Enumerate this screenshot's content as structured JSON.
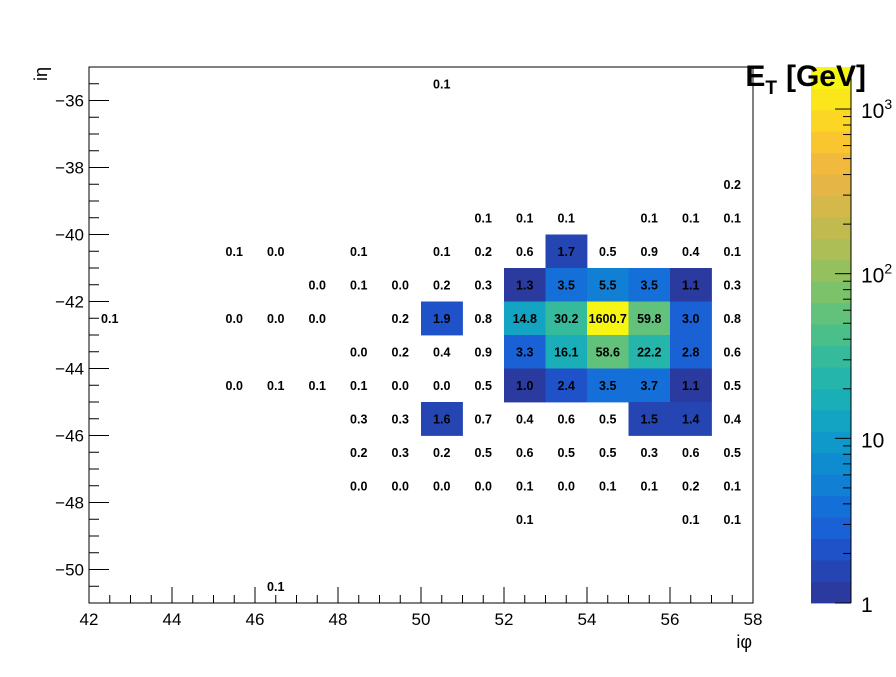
{
  "chart_data": {
    "type": "heatmap",
    "xlabel": "iφ",
    "ylabel": "iη",
    "zlabel": "E",
    "zlabel_sub": "T",
    "zlabel_unit": "[GeV]",
    "xlim": [
      42,
      58
    ],
    "ylim": [
      -51,
      -35
    ],
    "zlim": [
      1,
      1800
    ],
    "z_scale": "log",
    "x_ticks": [
      "42",
      "44",
      "46",
      "48",
      "50",
      "52",
      "54",
      "56",
      "58"
    ],
    "y_ticks": [
      "−36",
      "−38",
      "−40",
      "−42",
      "−44",
      "−46",
      "−48",
      "−50"
    ],
    "z_ticks": [
      {
        "value": 1,
        "base": "1",
        "exp": ""
      },
      {
        "value": 10,
        "base": "10",
        "exp": ""
      },
      {
        "value": 100,
        "base": "10",
        "exp": "2"
      },
      {
        "value": 1000,
        "base": "10",
        "exp": "3"
      }
    ],
    "colormap": [
      "#2a3a9e",
      "#2546b2",
      "#1f52c8",
      "#1a61d6",
      "#1470d8",
      "#117fd4",
      "#0f8ccf",
      "#0e99ca",
      "#12a4c2",
      "#1aaeb8",
      "#25b5ab",
      "#35bb9b",
      "#4bbf8a",
      "#62c17a",
      "#7bc26b",
      "#94c15e",
      "#acbe55",
      "#c1bb4f",
      "#d4b84a",
      "#e5b646",
      "#f2b93f",
      "#f9c630",
      "#fbd624",
      "#fae61a",
      "#f7f612"
    ],
    "cells": [
      {
        "x": 50,
        "y": -36,
        "value": 0.1,
        "label": "0.1"
      },
      {
        "x": 57,
        "y": -39,
        "value": 0.2,
        "label": "0.2"
      },
      {
        "x": 51,
        "y": -40,
        "value": 0.1,
        "label": "0.1"
      },
      {
        "x": 52,
        "y": -40,
        "value": 0.1,
        "label": "0.1"
      },
      {
        "x": 53,
        "y": -40,
        "value": 0.1,
        "label": "0.1"
      },
      {
        "x": 55,
        "y": -40,
        "value": 0.1,
        "label": "0.1"
      },
      {
        "x": 56,
        "y": -40,
        "value": 0.1,
        "label": "0.1"
      },
      {
        "x": 57,
        "y": -40,
        "value": 0.1,
        "label": "0.1"
      },
      {
        "x": 45,
        "y": -41,
        "value": 0.1,
        "label": "0.1"
      },
      {
        "x": 46,
        "y": -41,
        "value": 0.0,
        "label": "0.0"
      },
      {
        "x": 48,
        "y": -41,
        "value": 0.1,
        "label": "0.1"
      },
      {
        "x": 50,
        "y": -41,
        "value": 0.1,
        "label": "0.1"
      },
      {
        "x": 51,
        "y": -41,
        "value": 0.2,
        "label": "0.2"
      },
      {
        "x": 52,
        "y": -41,
        "value": 0.6,
        "label": "0.6"
      },
      {
        "x": 53,
        "y": -41,
        "value": 1.7,
        "label": "1.7"
      },
      {
        "x": 54,
        "y": -41,
        "value": 0.5,
        "label": "0.5"
      },
      {
        "x": 55,
        "y": -41,
        "value": 0.9,
        "label": "0.9"
      },
      {
        "x": 56,
        "y": -41,
        "value": 0.4,
        "label": "0.4"
      },
      {
        "x": 57,
        "y": -41,
        "value": 0.1,
        "label": "0.1"
      },
      {
        "x": 47,
        "y": -42,
        "value": 0.0,
        "label": "0.0"
      },
      {
        "x": 48,
        "y": -42,
        "value": 0.1,
        "label": "0.1"
      },
      {
        "x": 49,
        "y": -42,
        "value": 0.0,
        "label": "0.0"
      },
      {
        "x": 50,
        "y": -42,
        "value": 0.2,
        "label": "0.2"
      },
      {
        "x": 51,
        "y": -42,
        "value": 0.3,
        "label": "0.3"
      },
      {
        "x": 52,
        "y": -42,
        "value": 1.3,
        "label": "1.3"
      },
      {
        "x": 53,
        "y": -42,
        "value": 3.5,
        "label": "3.5"
      },
      {
        "x": 54,
        "y": -42,
        "value": 5.5,
        "label": "5.5"
      },
      {
        "x": 55,
        "y": -42,
        "value": 3.5,
        "label": "3.5"
      },
      {
        "x": 56,
        "y": -42,
        "value": 1.1,
        "label": "1.1"
      },
      {
        "x": 57,
        "y": -42,
        "value": 0.3,
        "label": "0.3"
      },
      {
        "x": 42,
        "y": -43,
        "value": 0.1,
        "label": "0.1"
      },
      {
        "x": 45,
        "y": -43,
        "value": 0.0,
        "label": "0.0"
      },
      {
        "x": 46,
        "y": -43,
        "value": 0.0,
        "label": "0.0"
      },
      {
        "x": 47,
        "y": -43,
        "value": 0.0,
        "label": "0.0"
      },
      {
        "x": 49,
        "y": -43,
        "value": 0.2,
        "label": "0.2"
      },
      {
        "x": 50,
        "y": -43,
        "value": 1.9,
        "label": "1.9"
      },
      {
        "x": 51,
        "y": -43,
        "value": 0.8,
        "label": "0.8"
      },
      {
        "x": 52,
        "y": -43,
        "value": 14.8,
        "label": "14.8"
      },
      {
        "x": 53,
        "y": -43,
        "value": 30.2,
        "label": "30.2"
      },
      {
        "x": 54,
        "y": -43,
        "value": 1600.7,
        "label": "1600.7"
      },
      {
        "x": 55,
        "y": -43,
        "value": 59.8,
        "label": "59.8"
      },
      {
        "x": 56,
        "y": -43,
        "value": 3.0,
        "label": "3.0"
      },
      {
        "x": 57,
        "y": -43,
        "value": 0.8,
        "label": "0.8"
      },
      {
        "x": 48,
        "y": -44,
        "value": 0.0,
        "label": "0.0"
      },
      {
        "x": 49,
        "y": -44,
        "value": 0.2,
        "label": "0.2"
      },
      {
        "x": 50,
        "y": -44,
        "value": 0.4,
        "label": "0.4"
      },
      {
        "x": 51,
        "y": -44,
        "value": 0.9,
        "label": "0.9"
      },
      {
        "x": 52,
        "y": -44,
        "value": 3.3,
        "label": "3.3"
      },
      {
        "x": 53,
        "y": -44,
        "value": 16.1,
        "label": "16.1"
      },
      {
        "x": 54,
        "y": -44,
        "value": 58.6,
        "label": "58.6"
      },
      {
        "x": 55,
        "y": -44,
        "value": 22.2,
        "label": "22.2"
      },
      {
        "x": 56,
        "y": -44,
        "value": 2.8,
        "label": "2.8"
      },
      {
        "x": 57,
        "y": -44,
        "value": 0.6,
        "label": "0.6"
      },
      {
        "x": 45,
        "y": -45,
        "value": 0.0,
        "label": "0.0"
      },
      {
        "x": 46,
        "y": -45,
        "value": 0.1,
        "label": "0.1"
      },
      {
        "x": 47,
        "y": -45,
        "value": 0.1,
        "label": "0.1"
      },
      {
        "x": 48,
        "y": -45,
        "value": 0.1,
        "label": "0.1"
      },
      {
        "x": 49,
        "y": -45,
        "value": 0.0,
        "label": "0.0"
      },
      {
        "x": 50,
        "y": -45,
        "value": 0.0,
        "label": "0.0"
      },
      {
        "x": 51,
        "y": -45,
        "value": 0.5,
        "label": "0.5"
      },
      {
        "x": 52,
        "y": -45,
        "value": 1.0,
        "label": "1.0"
      },
      {
        "x": 53,
        "y": -45,
        "value": 2.4,
        "label": "2.4"
      },
      {
        "x": 54,
        "y": -45,
        "value": 3.5,
        "label": "3.5"
      },
      {
        "x": 55,
        "y": -45,
        "value": 3.7,
        "label": "3.7"
      },
      {
        "x": 56,
        "y": -45,
        "value": 1.1,
        "label": "1.1"
      },
      {
        "x": 57,
        "y": -45,
        "value": 0.5,
        "label": "0.5"
      },
      {
        "x": 48,
        "y": -46,
        "value": 0.3,
        "label": "0.3"
      },
      {
        "x": 49,
        "y": -46,
        "value": 0.3,
        "label": "0.3"
      },
      {
        "x": 50,
        "y": -46,
        "value": 1.6,
        "label": "1.6"
      },
      {
        "x": 51,
        "y": -46,
        "value": 0.7,
        "label": "0.7"
      },
      {
        "x": 52,
        "y": -46,
        "value": 0.4,
        "label": "0.4"
      },
      {
        "x": 53,
        "y": -46,
        "value": 0.6,
        "label": "0.6"
      },
      {
        "x": 54,
        "y": -46,
        "value": 0.5,
        "label": "0.5"
      },
      {
        "x": 55,
        "y": -46,
        "value": 1.5,
        "label": "1.5"
      },
      {
        "x": 56,
        "y": -46,
        "value": 1.4,
        "label": "1.4"
      },
      {
        "x": 57,
        "y": -46,
        "value": 0.4,
        "label": "0.4"
      },
      {
        "x": 48,
        "y": -47,
        "value": 0.2,
        "label": "0.2"
      },
      {
        "x": 49,
        "y": -47,
        "value": 0.3,
        "label": "0.3"
      },
      {
        "x": 50,
        "y": -47,
        "value": 0.2,
        "label": "0.2"
      },
      {
        "x": 51,
        "y": -47,
        "value": 0.5,
        "label": "0.5"
      },
      {
        "x": 52,
        "y": -47,
        "value": 0.6,
        "label": "0.6"
      },
      {
        "x": 53,
        "y": -47,
        "value": 0.5,
        "label": "0.5"
      },
      {
        "x": 54,
        "y": -47,
        "value": 0.5,
        "label": "0.5"
      },
      {
        "x": 55,
        "y": -47,
        "value": 0.3,
        "label": "0.3"
      },
      {
        "x": 56,
        "y": -47,
        "value": 0.6,
        "label": "0.6"
      },
      {
        "x": 57,
        "y": -47,
        "value": 0.5,
        "label": "0.5"
      },
      {
        "x": 48,
        "y": -48,
        "value": 0.0,
        "label": "0.0"
      },
      {
        "x": 49,
        "y": -48,
        "value": 0.0,
        "label": "0.0"
      },
      {
        "x": 50,
        "y": -48,
        "value": 0.0,
        "label": "0.0"
      },
      {
        "x": 51,
        "y": -48,
        "value": 0.0,
        "label": "0.0"
      },
      {
        "x": 52,
        "y": -48,
        "value": 0.1,
        "label": "0.1"
      },
      {
        "x": 53,
        "y": -48,
        "value": 0.0,
        "label": "0.0"
      },
      {
        "x": 54,
        "y": -48,
        "value": 0.1,
        "label": "0.1"
      },
      {
        "x": 55,
        "y": -48,
        "value": 0.1,
        "label": "0.1"
      },
      {
        "x": 56,
        "y": -48,
        "value": 0.2,
        "label": "0.2"
      },
      {
        "x": 57,
        "y": -48,
        "value": 0.1,
        "label": "0.1"
      },
      {
        "x": 52,
        "y": -49,
        "value": 0.1,
        "label": "0.1"
      },
      {
        "x": 56,
        "y": -49,
        "value": 0.1,
        "label": "0.1"
      },
      {
        "x": 57,
        "y": -49,
        "value": 0.1,
        "label": "0.1"
      },
      {
        "x": 46,
        "y": -51,
        "value": 0.1,
        "label": "0.1"
      }
    ]
  }
}
